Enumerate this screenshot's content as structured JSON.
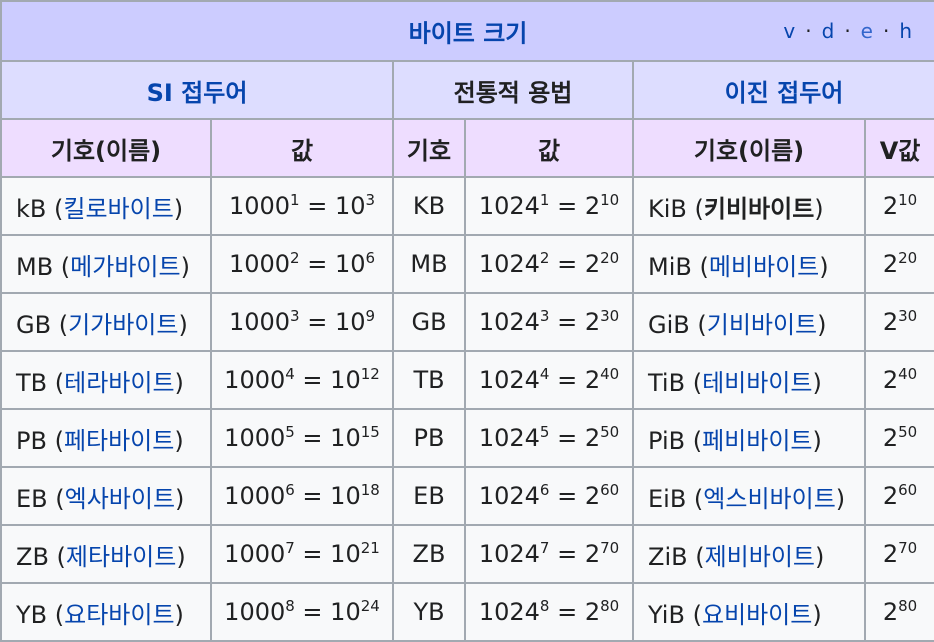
{
  "title": "바이트 크기",
  "navlinks": [
    "v",
    "d",
    "e",
    "h"
  ],
  "group_headers": [
    "SI 접두어",
    "전통적 용법",
    "이진 접두어"
  ],
  "column_headers": [
    "기호(이름)",
    "값",
    "기호",
    "값",
    "기호(이름)",
    "V값"
  ],
  "rows": [
    {
      "si_symbol": "kB",
      "si_name": "킬로바이트",
      "si_base": "1000",
      "si_exp": "1",
      "si_pbase": "10",
      "si_pexp": "3",
      "trad_symbol": "KB",
      "trad_base": "1024",
      "trad_exp": "1",
      "trad_pbase": "2",
      "trad_pexp": "10",
      "bin_symbol": "KiB",
      "bin_name": "키비바이트",
      "v_base": "2",
      "v_exp": "10"
    },
    {
      "si_symbol": "MB",
      "si_name": "메가바이트",
      "si_base": "1000",
      "si_exp": "2",
      "si_pbase": "10",
      "si_pexp": "6",
      "trad_symbol": "MB",
      "trad_base": "1024",
      "trad_exp": "2",
      "trad_pbase": "2",
      "trad_pexp": "20",
      "bin_symbol": "MiB",
      "bin_name": "메비바이트",
      "v_base": "2",
      "v_exp": "20"
    },
    {
      "si_symbol": "GB",
      "si_name": "기가바이트",
      "si_base": "1000",
      "si_exp": "3",
      "si_pbase": "10",
      "si_pexp": "9",
      "trad_symbol": "GB",
      "trad_base": "1024",
      "trad_exp": "3",
      "trad_pbase": "2",
      "trad_pexp": "30",
      "bin_symbol": "GiB",
      "bin_name": "기비바이트",
      "v_base": "2",
      "v_exp": "30"
    },
    {
      "si_symbol": "TB",
      "si_name": "테라바이트",
      "si_base": "1000",
      "si_exp": "4",
      "si_pbase": "10",
      "si_pexp": "12",
      "trad_symbol": "TB",
      "trad_base": "1024",
      "trad_exp": "4",
      "trad_pbase": "2",
      "trad_pexp": "40",
      "bin_symbol": "TiB",
      "bin_name": "테비바이트",
      "v_base": "2",
      "v_exp": "40"
    },
    {
      "si_symbol": "PB",
      "si_name": "페타바이트",
      "si_base": "1000",
      "si_exp": "5",
      "si_pbase": "10",
      "si_pexp": "15",
      "trad_symbol": "PB",
      "trad_base": "1024",
      "trad_exp": "5",
      "trad_pbase": "2",
      "trad_pexp": "50",
      "bin_symbol": "PiB",
      "bin_name": "페비바이트",
      "v_base": "2",
      "v_exp": "50"
    },
    {
      "si_symbol": "EB",
      "si_name": "엑사바이트",
      "si_base": "1000",
      "si_exp": "6",
      "si_pbase": "10",
      "si_pexp": "18",
      "trad_symbol": "EB",
      "trad_base": "1024",
      "trad_exp": "6",
      "trad_pbase": "2",
      "trad_pexp": "60",
      "bin_symbol": "EiB",
      "bin_name": "엑스비바이트",
      "v_base": "2",
      "v_exp": "60"
    },
    {
      "si_symbol": "ZB",
      "si_name": "제타바이트",
      "si_base": "1000",
      "si_exp": "7",
      "si_pbase": "10",
      "si_pexp": "21",
      "trad_symbol": "ZB",
      "trad_base": "1024",
      "trad_exp": "7",
      "trad_pbase": "2",
      "trad_pexp": "70",
      "bin_symbol": "ZiB",
      "bin_name": "제비바이트",
      "v_base": "2",
      "v_exp": "70"
    },
    {
      "si_symbol": "YB",
      "si_name": "요타바이트",
      "si_base": "1000",
      "si_exp": "8",
      "si_pbase": "10",
      "si_pexp": "24",
      "trad_symbol": "YB",
      "trad_base": "1024",
      "trad_exp": "8",
      "trad_pbase": "2",
      "trad_pexp": "80",
      "bin_symbol": "YiB",
      "bin_name": "요비바이트",
      "v_base": "2",
      "v_exp": "80"
    }
  ],
  "colors": {
    "title_bg": "#ccccff",
    "group_bg": "#ddddff",
    "column_bg": "#eeddff",
    "cell_bg": "#f8f9fa",
    "border": "#a2a9b1",
    "link": "#0645ad"
  }
}
